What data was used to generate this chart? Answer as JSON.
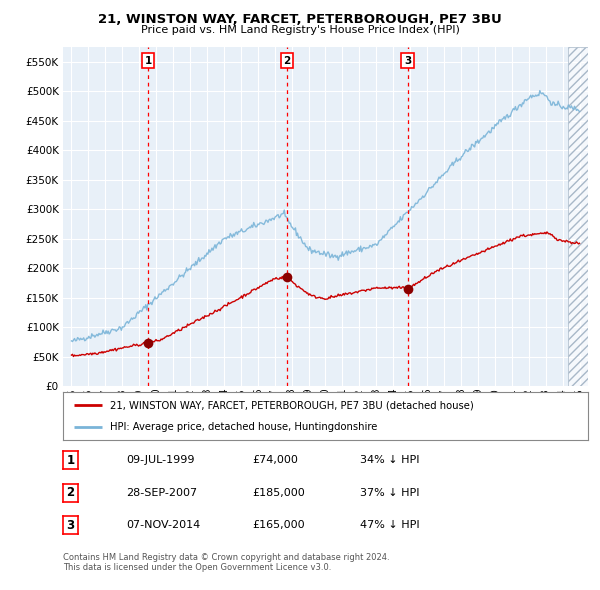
{
  "title_line1": "21, WINSTON WAY, FARCET, PETERBOROUGH, PE7 3BU",
  "title_line2": "Price paid vs. HM Land Registry's House Price Index (HPI)",
  "ylabel_ticks": [
    "£0",
    "£50K",
    "£100K",
    "£150K",
    "£200K",
    "£250K",
    "£300K",
    "£350K",
    "£400K",
    "£450K",
    "£500K",
    "£550K"
  ],
  "ytick_values": [
    0,
    50000,
    100000,
    150000,
    200000,
    250000,
    300000,
    350000,
    400000,
    450000,
    500000,
    550000
  ],
  "xmin": 1994.5,
  "xmax": 2025.5,
  "ymin": 0,
  "ymax": 575000,
  "background_color": "#e8f0f8",
  "grid_color": "#d0d8e0",
  "hpi_color": "#7ab4d8",
  "price_color": "#cc0000",
  "transaction_dates": [
    1999.53,
    2007.74,
    2014.85
  ],
  "transaction_prices": [
    74000,
    185000,
    165000
  ],
  "transaction_labels": [
    "1",
    "2",
    "3"
  ],
  "legend_line1": "21, WINSTON WAY, FARCET, PETERBOROUGH, PE7 3BU (detached house)",
  "legend_line2": "HPI: Average price, detached house, Huntingdonshire",
  "table_data": [
    [
      "1",
      "09-JUL-1999",
      "£74,000",
      "34% ↓ HPI"
    ],
    [
      "2",
      "28-SEP-2007",
      "£185,000",
      "37% ↓ HPI"
    ],
    [
      "3",
      "07-NOV-2014",
      "£165,000",
      "47% ↓ HPI"
    ]
  ],
  "footnote1": "Contains HM Land Registry data © Crown copyright and database right 2024.",
  "footnote2": "This data is licensed under the Open Government Licence v3.0."
}
